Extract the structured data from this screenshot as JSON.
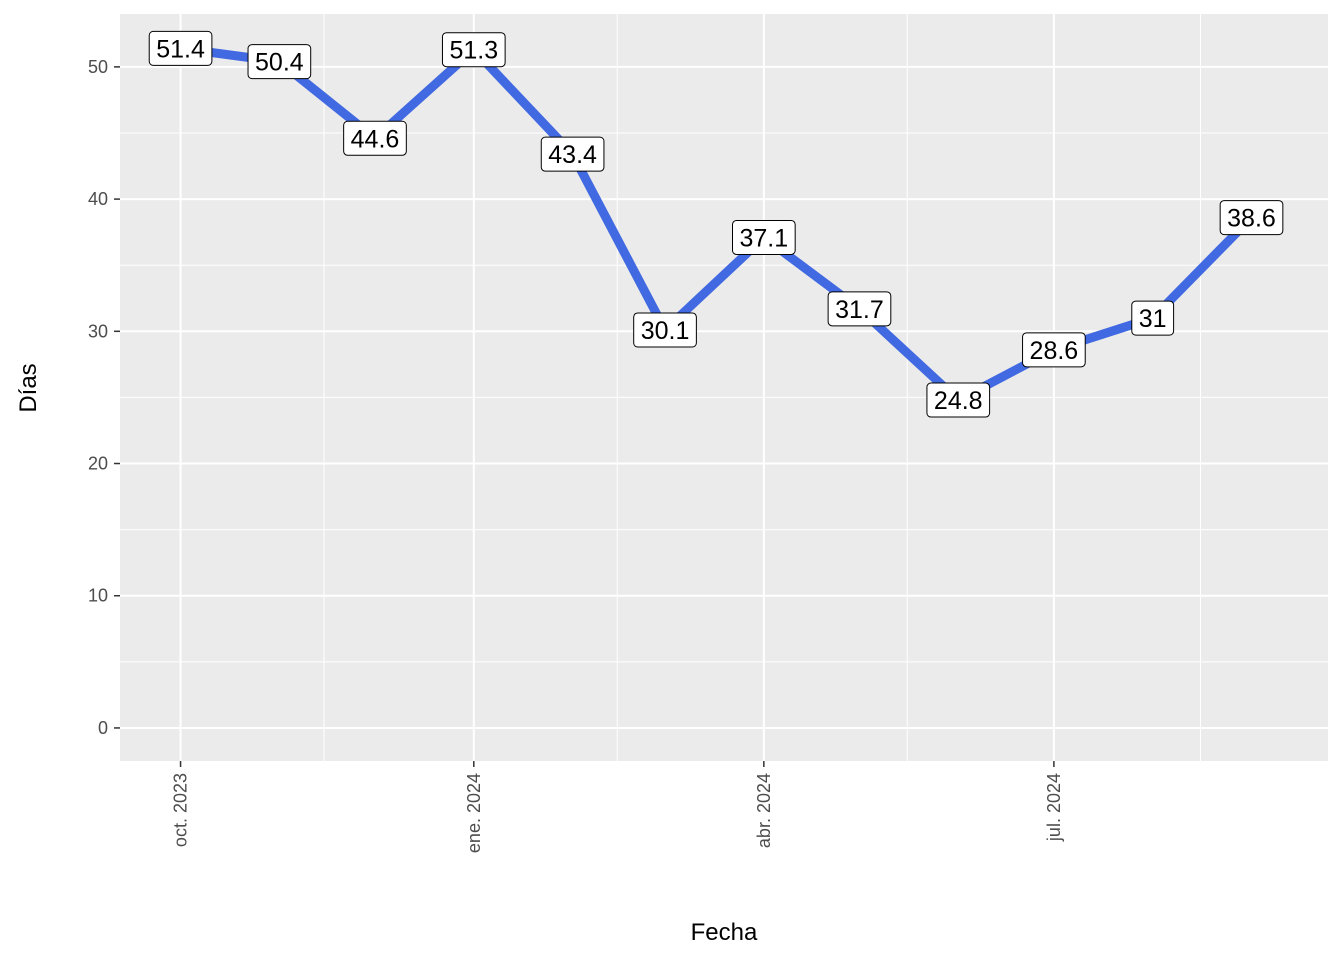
{
  "chart_data": {
    "type": "line",
    "xlabel": "Fecha",
    "ylabel": "Días",
    "ylim": [
      -2.5,
      54.0
    ],
    "xlim": [
      "2023-09-12",
      "2024-09-25"
    ],
    "y_ticks": [
      0,
      10,
      20,
      30,
      40,
      50
    ],
    "x_ticks": [
      {
        "date": "2023-10-01",
        "label": "oct. 2023"
      },
      {
        "date": "2024-01-01",
        "label": "ene. 2024"
      },
      {
        "date": "2024-04-01",
        "label": "abr. 2024"
      },
      {
        "date": "2024-07-01",
        "label": "jul. 2024"
      }
    ],
    "x_minor_ticks": [
      "2023-11-15",
      "2024-02-15",
      "2024-05-16",
      "2024-08-16"
    ],
    "grid": true,
    "series": [
      {
        "color": "#4169E1",
        "points": [
          {
            "x": "2023-10-01",
            "y": 51.4,
            "label": "51.4"
          },
          {
            "x": "2023-11-01",
            "y": 50.4,
            "label": "50.4"
          },
          {
            "x": "2023-12-01",
            "y": 44.6,
            "label": "44.6"
          },
          {
            "x": "2024-01-01",
            "y": 51.3,
            "label": "51.3"
          },
          {
            "x": "2024-02-01",
            "y": 43.4,
            "label": "43.4"
          },
          {
            "x": "2024-03-01",
            "y": 30.1,
            "label": "30.1"
          },
          {
            "x": "2024-04-01",
            "y": 37.1,
            "label": "37.1"
          },
          {
            "x": "2024-05-01",
            "y": 31.7,
            "label": "31.7"
          },
          {
            "x": "2024-06-01",
            "y": 24.8,
            "label": "24.8"
          },
          {
            "x": "2024-07-01",
            "y": 28.6,
            "label": "28.6"
          },
          {
            "x": "2024-08-01",
            "y": 31,
            "label": "31"
          },
          {
            "x": "2024-09-01",
            "y": 38.6,
            "label": "38.6"
          }
        ]
      }
    ]
  },
  "colors": {
    "panel_background": "#EBEBEB",
    "grid": "#FFFFFF",
    "line": "#4169E1",
    "tick_text": "#4D4D4D"
  }
}
